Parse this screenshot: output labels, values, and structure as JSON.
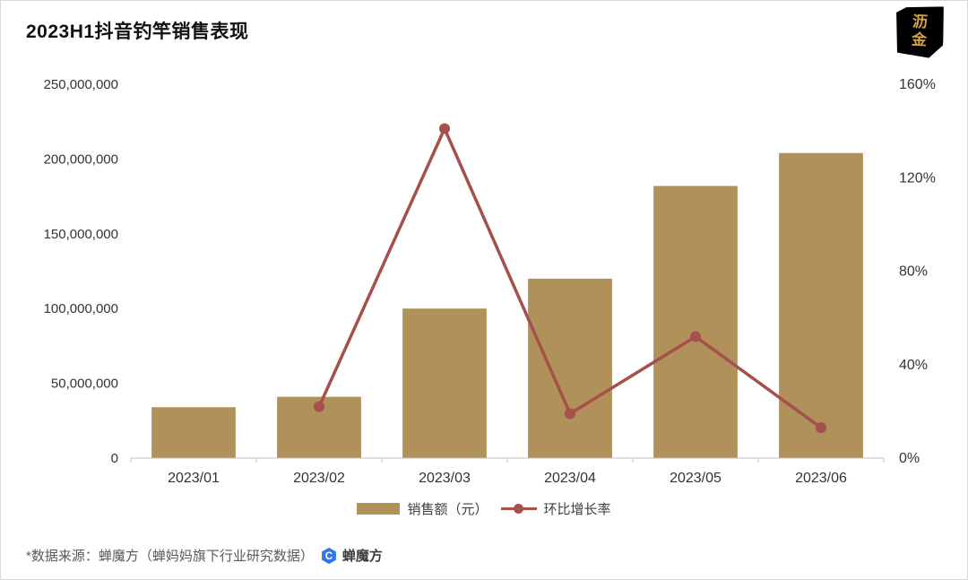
{
  "title": "2023H1抖音钓竿销售表现",
  "brand_badge": {
    "line1": "沥",
    "line2": "金"
  },
  "legend": {
    "bar_label": "销售额（元）",
    "line_label": "环比增长率"
  },
  "footer": {
    "source_text": "*数据来源：蝉魔方（蝉妈妈旗下行业研究数据）",
    "brand_name": "蝉魔方",
    "brand_logo_letter": "C"
  },
  "colors": {
    "bar": "#B1915A",
    "line": "#A5504C",
    "axis_text": "#333333",
    "axis_line": "#BFBFBF",
    "badge_bg": "#000000",
    "badge_text": "#D2A446",
    "footer_text": "#595959",
    "footer_brand_blue": "#3178E6",
    "footer_brand_text": "#3d3d3d"
  },
  "chart_data": {
    "type": "combo-bar-line",
    "title": "2023H1抖音钓竿销售表现",
    "categories": [
      "2023/01",
      "2023/02",
      "2023/03",
      "2023/04",
      "2023/05",
      "2023/06"
    ],
    "series": [
      {
        "name": "销售额（元）",
        "type": "bar",
        "axis": "left",
        "values": [
          34000000,
          41000000,
          100000000,
          120000000,
          182000000,
          204000000
        ]
      },
      {
        "name": "环比增长率",
        "type": "line",
        "axis": "right",
        "values_percent": [
          null,
          22,
          141,
          19,
          52,
          13
        ]
      }
    ],
    "y_left": {
      "min": 0,
      "max": 250000000,
      "tick_labels": [
        "0",
        "50,000,000",
        "100,000,000",
        "150,000,000",
        "200,000,000",
        "250,000,000"
      ]
    },
    "y_right": {
      "min": 0,
      "max": 160,
      "tick_labels": [
        "0%",
        "40%",
        "80%",
        "120%",
        "160%"
      ]
    },
    "grid": false,
    "legend_position": "bottom"
  }
}
